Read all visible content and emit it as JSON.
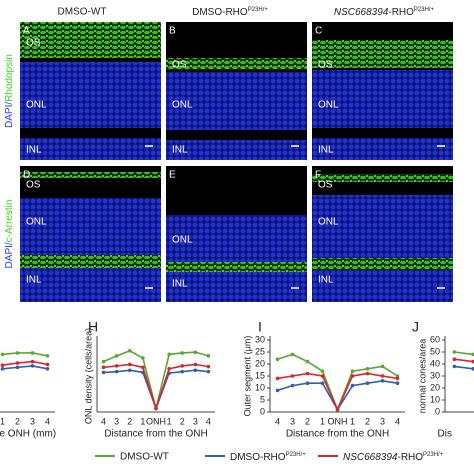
{
  "column_titles": [
    {
      "text": "DMSO-WT"
    },
    {
      "text": "DMSO-RHO",
      "superscript": "P23H/+"
    },
    {
      "italic": "NSC668394",
      "text": "-RHO",
      "superscript": "P23H/+"
    }
  ],
  "row_labels": [
    {
      "stain1": "DAPI/",
      "stain2": "Rhodopsin"
    },
    {
      "stain1": "DAPI/",
      "stain2": "c-Arrestin"
    }
  ],
  "panels": [
    {
      "label": "A",
      "layers": [
        "OS",
        "ONL",
        "INL"
      ]
    },
    {
      "label": "B",
      "layers": [
        "OS",
        "ONL",
        "INL"
      ]
    },
    {
      "label": "C",
      "layers": [
        "OS",
        "ONL",
        "INL"
      ]
    },
    {
      "label": "D",
      "layers": [
        "OS",
        "ONL",
        "INL"
      ]
    },
    {
      "label": "E",
      "layers": [
        "ONL",
        "INL"
      ]
    },
    {
      "label": "F",
      "layers": [
        "OS",
        "ONL",
        "INL"
      ]
    }
  ],
  "legend": [
    {
      "text": "DMSO-WT"
    },
    {
      "text": "DMSO-RHO",
      "superscript": "P23H/+"
    },
    {
      "italic": "NSC668394",
      "text": "-RHO",
      "superscript": "P23H/+"
    }
  ],
  "chart_data": [
    {
      "type": "line",
      "xlabel": "he ONH  (mm)",
      "categories": [
        "1",
        "2",
        "3",
        "4"
      ],
      "ylim": [
        0,
        100
      ],
      "series": [
        {
          "color": "#5aa832",
          "values": [
            80,
            82,
            82,
            78
          ]
        },
        {
          "color": "#2f5fb0",
          "values": [
            60,
            62,
            64,
            60
          ]
        },
        {
          "color": "#d9262c",
          "values": [
            65,
            68,
            70,
            66
          ]
        }
      ]
    },
    {
      "type": "line",
      "label": "H",
      "ylabel": "ONL density (cells/area)",
      "xlabel": "Distance from the ONH",
      "categories": [
        "4",
        "3",
        "2",
        "1",
        "ONH",
        "1",
        "2",
        "3",
        "4"
      ],
      "ylim": [
        0,
        100
      ],
      "series": [
        {
          "color": "#5aa832",
          "values": [
            70,
            78,
            85,
            75,
            5,
            80,
            82,
            83,
            78
          ]
        },
        {
          "color": "#2f5fb0",
          "values": [
            55,
            56,
            58,
            55,
            5,
            54,
            56,
            58,
            56
          ]
        },
        {
          "color": "#d9262c",
          "values": [
            62,
            64,
            66,
            62,
            5,
            60,
            64,
            66,
            63
          ]
        }
      ]
    },
    {
      "type": "line",
      "label": "I",
      "ylabel": "Outer segment (μm)",
      "xlabel": "Distance from the ONH",
      "categories": [
        "4",
        "3",
        "2",
        "1",
        "ONH",
        "1",
        "2",
        "3",
        "4"
      ],
      "ylim": [
        0,
        30
      ],
      "yticks": [
        0,
        5,
        10,
        15,
        20,
        25,
        30
      ],
      "series": [
        {
          "color": "#5aa832",
          "values": [
            22,
            24,
            21,
            17,
            1,
            17,
            18,
            19,
            15
          ]
        },
        {
          "color": "#2f5fb0",
          "values": [
            9,
            11,
            12,
            12,
            1,
            11,
            12,
            13,
            12
          ]
        },
        {
          "color": "#d9262c",
          "values": [
            14,
            15,
            16,
            15,
            1,
            15,
            16,
            15,
            14
          ]
        }
      ]
    },
    {
      "type": "line",
      "label": "J",
      "ylabel": "normal cones/area",
      "xlabel": "Dis",
      "ylim": [
        0,
        60
      ],
      "yticks": [
        0,
        10,
        20,
        30,
        40,
        50,
        60
      ],
      "series": [
        {
          "color": "#5aa832",
          "values": [
            50,
            48
          ]
        },
        {
          "color": "#2f5fb0",
          "values": [
            38,
            36
          ]
        },
        {
          "color": "#d9262c",
          "values": [
            44,
            42
          ]
        }
      ]
    }
  ]
}
